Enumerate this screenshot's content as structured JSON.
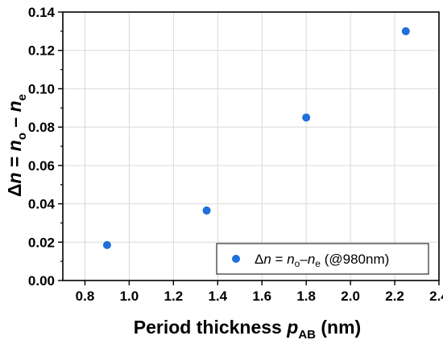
{
  "chart_data": {
    "type": "scatter",
    "title": "",
    "xlabel": {
      "text": "Period thickness ",
      "var": "p",
      "sub": "AB",
      "unit": " (nm)"
    },
    "ylabel": {
      "delta": "Δ",
      "n1": "n",
      "eq": " = ",
      "n2": "n",
      "sub1": "o",
      "minus": " – ",
      "n3": "n",
      "sub2": "e"
    },
    "xlim": [
      0.7,
      2.4
    ],
    "ylim": [
      0,
      0.14
    ],
    "xticks": [
      "0.8",
      "1.0",
      "1.2",
      "1.4",
      "1.6",
      "1.8",
      "2.0",
      "2.2",
      "2.4"
    ],
    "yticks": [
      "0.00",
      "0.02",
      "0.04",
      "0.06",
      "0.08",
      "0.10",
      "0.12",
      "0.14"
    ],
    "grid": true,
    "legend_position": "bottom-right",
    "series": [
      {
        "legend": {
          "delta": "Δ",
          "n1": "n",
          "eq": " = ",
          "n2": "n",
          "sub1": "o",
          "minus": "–",
          "n3": "n",
          "sub2": "e",
          "note": " (@980nm)"
        },
        "color": "#1f6fdc",
        "points": [
          {
            "x": 0.9,
            "y": 0.0185
          },
          {
            "x": 1.35,
            "y": 0.0365
          },
          {
            "x": 1.8,
            "y": 0.085
          },
          {
            "x": 2.25,
            "y": 0.13
          }
        ]
      }
    ]
  }
}
